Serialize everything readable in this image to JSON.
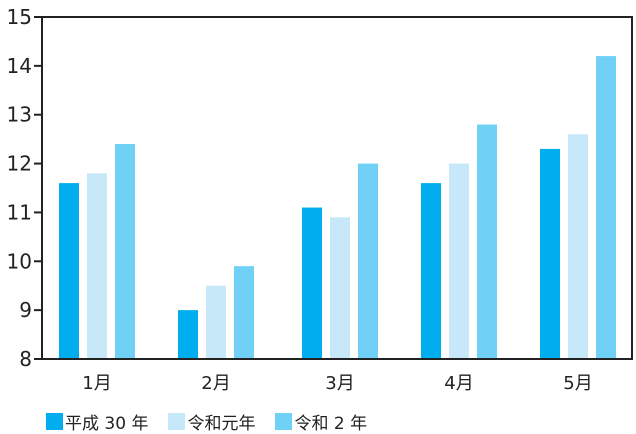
{
  "chart_data": {
    "type": "bar",
    "title": "",
    "xlabel": "",
    "ylabel": "",
    "categories": [
      "1月",
      "2月",
      "3月",
      "4月",
      "5月"
    ],
    "series": [
      {
        "name": "平成 30 年",
        "color": "#00aeef",
        "values": [
          11.6,
          9.0,
          11.1,
          11.6,
          12.3
        ]
      },
      {
        "name": "令和元年",
        "color": "#c6e8f8",
        "values": [
          11.8,
          9.5,
          10.9,
          12.0,
          12.6
        ]
      },
      {
        "name": "令和 2 年",
        "color": "#70d0f6",
        "values": [
          12.4,
          9.9,
          12.0,
          12.8,
          14.2
        ]
      }
    ],
    "ylim": [
      8,
      15
    ],
    "yticks": [
      "8",
      "9",
      "10",
      "11",
      "12",
      "13",
      "14",
      "15"
    ],
    "grid": false,
    "legend_position": "bottom-left"
  }
}
